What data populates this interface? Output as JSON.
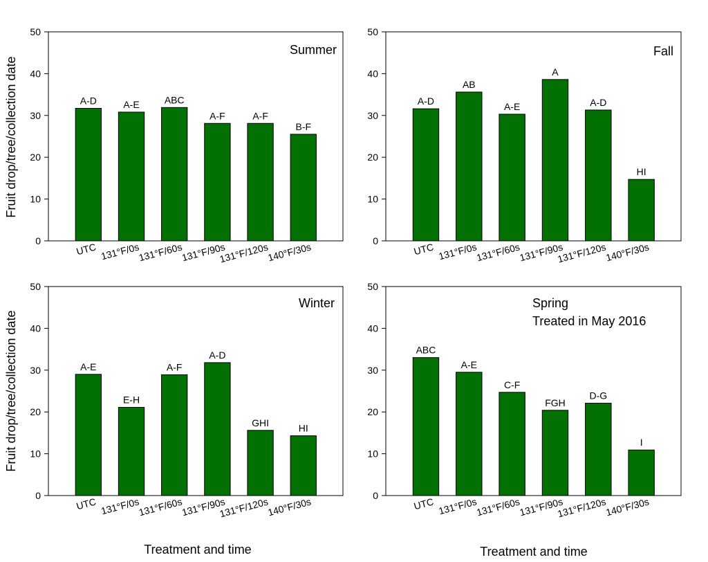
{
  "figure": {
    "ylabel": "Fruit drop/tree/collection date",
    "xlabel": "Treatment and time"
  },
  "colors": {
    "bar": "#037003",
    "axis": "#000000",
    "text": "#000000"
  },
  "chart_data": [
    {
      "type": "bar",
      "title": "Summer",
      "categories": [
        "UTC",
        "131°F/0s",
        "131°F/60s",
        "131°F/90s",
        "131°F/120s",
        "140°F/30s"
      ],
      "values": [
        31.7,
        30.8,
        31.9,
        28.1,
        28.1,
        25.5
      ],
      "labels": [
        "A-D",
        "A-E",
        "ABC",
        "A-F",
        "A-F",
        "B-F"
      ],
      "ylim": [
        0,
        50
      ],
      "yticks": [
        0,
        10,
        20,
        30,
        40,
        50
      ],
      "ylabel": "Fruit drop/tree/collection date",
      "xlabel": ""
    },
    {
      "type": "bar",
      "title": "Fall",
      "categories": [
        "UTC",
        "131°F/0s",
        "131°F/60s",
        "131°F/90s",
        "131°F/120s",
        "140°F/30s"
      ],
      "values": [
        31.6,
        35.6,
        30.3,
        38.6,
        31.3,
        14.7
      ],
      "labels": [
        "A-D",
        "AB",
        "A-E",
        "A",
        "A-D",
        "HI"
      ],
      "ylim": [
        0,
        50
      ],
      "yticks": [
        0,
        10,
        20,
        30,
        40,
        50
      ],
      "ylabel": "",
      "xlabel": ""
    },
    {
      "type": "bar",
      "title": "Winter",
      "categories": [
        "UTC",
        "131°F/0s",
        "131°F/60s",
        "131°F/90s",
        "131°F/120s",
        "140°F/30s"
      ],
      "values": [
        29.0,
        21.1,
        28.9,
        31.8,
        15.6,
        14.3
      ],
      "labels": [
        "A-E",
        "E-H",
        "A-F",
        "A-D",
        "GHI",
        "HI"
      ],
      "ylim": [
        0,
        50
      ],
      "yticks": [
        0,
        10,
        20,
        30,
        40,
        50
      ],
      "ylabel": "Fruit drop/tree/collection date",
      "xlabel": "Treatment and time"
    },
    {
      "type": "bar",
      "title": "Spring",
      "subtitle": "Treated in May 2016",
      "categories": [
        "UTC",
        "131°F/0s",
        "131°F/60s",
        "131°F/90s",
        "131°F/120s",
        "140°F/30s"
      ],
      "values": [
        33.0,
        29.5,
        24.7,
        20.4,
        22.1,
        10.9
      ],
      "labels": [
        "ABC",
        "A-E",
        "C-F",
        "FGH",
        "D-G",
        "I"
      ],
      "ylim": [
        0,
        50
      ],
      "yticks": [
        0,
        10,
        20,
        30,
        40,
        50
      ],
      "ylabel": "",
      "xlabel": "Treatment and time"
    }
  ]
}
